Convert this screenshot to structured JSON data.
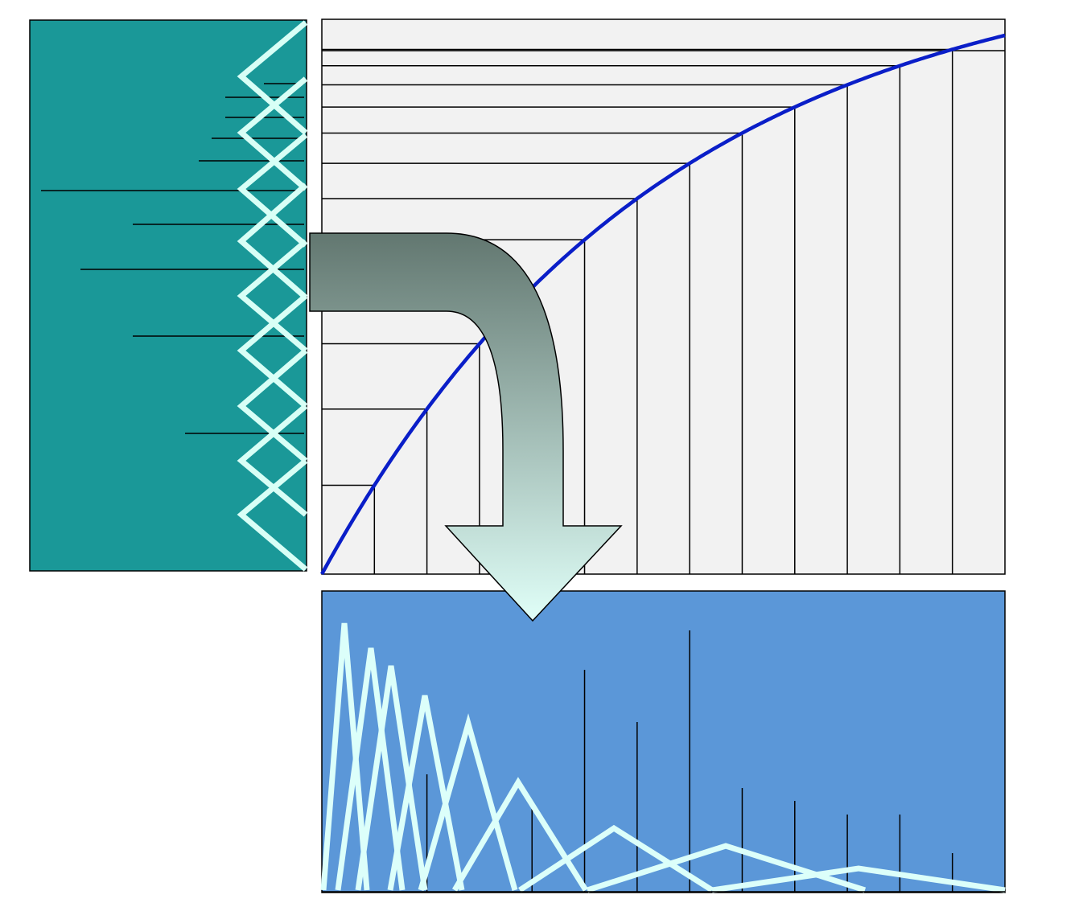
{
  "diagram": {
    "colors": {
      "left_panel": "#1a9898",
      "zigzag": "#d8fff6",
      "curve_panel": "#f2f2f2",
      "curve": "#0a1ec8",
      "bottom_panel": "#5b97d8",
      "bottom_lines": "#dcfffa",
      "arrow_top": "#627770",
      "arrow_bottom": "#e0fff8",
      "ink": "#000000"
    },
    "curve_panel": {
      "description_free": true,
      "vertical_line_count": 13
    },
    "bottom_panel": {
      "stick_count": 13
    }
  }
}
